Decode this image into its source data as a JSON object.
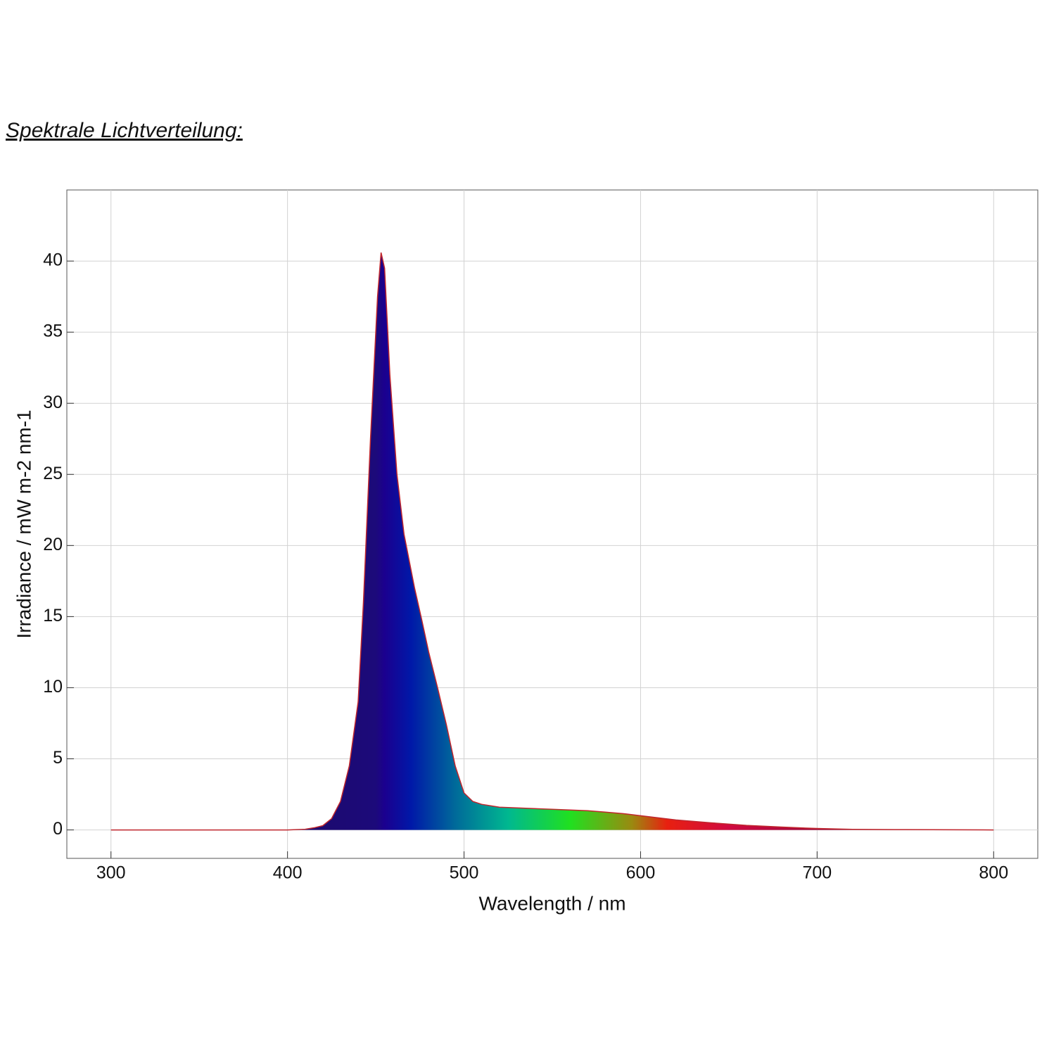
{
  "chart_data": {
    "type": "area",
    "title": "Spektrale Lichtverteilung:",
    "xlabel": "Wavelength / nm",
    "ylabel": "Irradiance / mW m-2 nm-1",
    "x": [
      300,
      400,
      410,
      415,
      420,
      425,
      430,
      435,
      440,
      443,
      447,
      451,
      453,
      455,
      458,
      462,
      466,
      472,
      476,
      480,
      485,
      490,
      495,
      500,
      505,
      510,
      520,
      530,
      540,
      550,
      560,
      570,
      580,
      590,
      600,
      610,
      620,
      640,
      660,
      680,
      700,
      720,
      750,
      800
    ],
    "values": [
      0,
      0,
      0.05,
      0.15,
      0.3,
      0.8,
      2,
      4.5,
      9,
      16,
      27.5,
      37.5,
      40.6,
      39.5,
      32,
      25,
      20.8,
      17,
      14.8,
      12.5,
      10,
      7.4,
      4.5,
      2.6,
      2,
      1.8,
      1.6,
      1.55,
      1.5,
      1.45,
      1.4,
      1.35,
      1.25,
      1.15,
      1,
      0.85,
      0.7,
      0.5,
      0.32,
      0.2,
      0.1,
      0.04,
      0.02,
      0
    ],
    "line_color": "#c0262d",
    "xlim": [
      275,
      825
    ],
    "ylim": [
      -2,
      45
    ],
    "xticks": [
      300,
      400,
      500,
      600,
      700,
      800
    ],
    "yticks": [
      0,
      5,
      10,
      15,
      20,
      25,
      30,
      35,
      40
    ],
    "grid": true
  }
}
